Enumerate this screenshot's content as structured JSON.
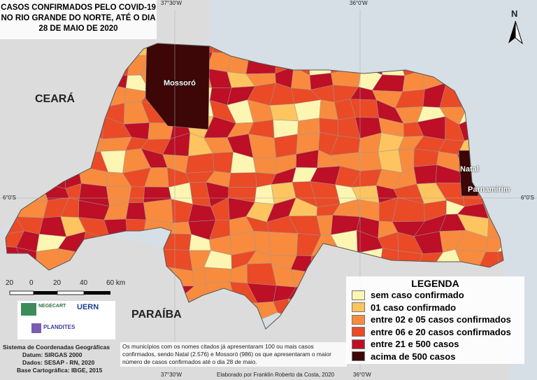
{
  "title_lines": [
    "CASOS CONFIRMADOS PELO COVID-19",
    "NO RIO GRANDE DO NORTE, ATÉ O DIA",
    "28 DE MAIO DE 2020"
  ],
  "graticule": {
    "top": [
      "37°30'W",
      "36°0'W"
    ],
    "bottom": [
      "37°30'W",
      "36°0'W"
    ],
    "left": "6°0'S",
    "right": "6°0'S"
  },
  "north_arrow": "N",
  "place_labels": {
    "ceara": "CEARÁ",
    "paraiba": "PARAÍBA",
    "mossoro": "Mossoró",
    "natal": "Natal",
    "parnamirim": "Parnamirim"
  },
  "scale_bar": [
    "20",
    "0",
    "20",
    "40",
    "60 km"
  ],
  "legend": {
    "title": "LEGENDA",
    "items": [
      {
        "label": "sem caso confirmado",
        "color": "#fdf6b2"
      },
      {
        "label": "01 caso confirmado",
        "color": "#fdc45f"
      },
      {
        "label": "entre 02 e 05 casos confirmados",
        "color": "#f98b3e"
      },
      {
        "label": "entre 06 e 20 casos confirmados",
        "color": "#ea4a26"
      },
      {
        "label": "entre 21 e 500 casos",
        "color": "#bd0f26"
      },
      {
        "label": "acima de 500 casos",
        "color": "#3d0707"
      }
    ]
  },
  "logos": [
    "NEGECART",
    "UERN",
    "PLANDITES"
  ],
  "credits": [
    "Sistema de Coordenadas Geográficas",
    "Datum: SIRGAS 2000",
    "Dados: SESAP - RN, 2020",
    "Base Cartográfica: IBGE, 2015"
  ],
  "note": "Os municípios com os nomes citados já apresentaram 100 ou mais casos confirmados, sendo Natal (2.576) e Mossoró (986) os que apresentaram o maior número de casos confirmados até o dia 28 de maio.",
  "author": "Elaborado por Franklin Roberto da Costa, 2020"
}
